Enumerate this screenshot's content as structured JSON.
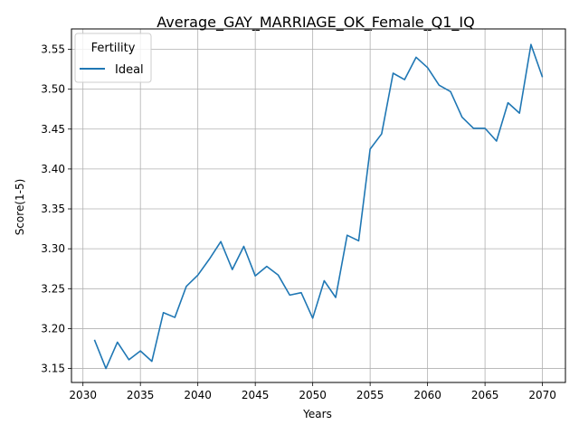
{
  "chart_data": {
    "type": "line",
    "title": "Average_GAY_MARRIAGE_OK_Female_Q1_IQ",
    "xlabel": "Years",
    "ylabel": "Score(1-5)",
    "xlim": [
      2029,
      2072
    ],
    "ylim": [
      3.1325,
      3.5755
    ],
    "xticks": [
      2030,
      2035,
      2040,
      2045,
      2050,
      2055,
      2060,
      2065,
      2070
    ],
    "yticks": [
      3.15,
      3.2,
      3.25,
      3.3,
      3.35,
      3.4,
      3.45,
      3.5,
      3.55
    ],
    "grid": true,
    "legend": {
      "title": "Fertility",
      "position": "top-left"
    },
    "series": [
      {
        "name": "Ideal",
        "color": "#1f77b4",
        "x": [
          2031,
          2032,
          2033,
          2034,
          2035,
          2036,
          2037,
          2038,
          2039,
          2040,
          2041,
          2042,
          2043,
          2044,
          2045,
          2046,
          2047,
          2048,
          2049,
          2050,
          2051,
          2052,
          2053,
          2054,
          2055,
          2056,
          2057,
          2058,
          2059,
          2060,
          2061,
          2062,
          2063,
          2064,
          2065,
          2066,
          2067,
          2068,
          2069,
          2070
        ],
        "y": [
          3.186,
          3.15,
          3.183,
          3.161,
          3.172,
          3.159,
          3.22,
          3.214,
          3.253,
          3.267,
          3.287,
          3.309,
          3.274,
          3.303,
          3.266,
          3.278,
          3.267,
          3.242,
          3.245,
          3.213,
          3.26,
          3.239,
          3.317,
          3.31,
          3.425,
          3.444,
          3.52,
          3.512,
          3.54,
          3.527,
          3.505,
          3.497,
          3.465,
          3.451,
          3.451,
          3.435,
          3.483,
          3.47,
          3.556,
          3.515
        ]
      }
    ]
  }
}
